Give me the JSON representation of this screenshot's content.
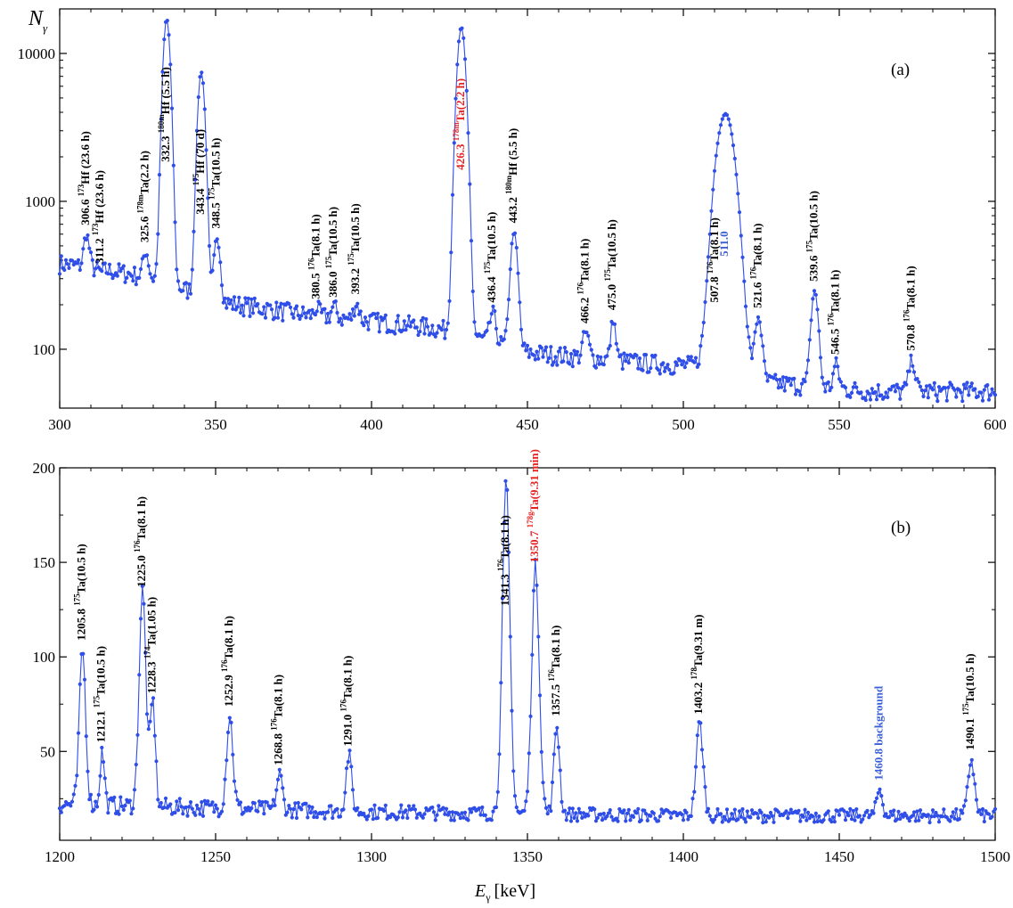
{
  "figure": {
    "ylabel_a": "N",
    "ylabel_a_sub": "γ",
    "xlabel": "E",
    "xlabel_sub": "γ",
    "xlabel_unit": "[keV]"
  },
  "colors": {
    "series": "#2f4ee8",
    "highlight": "#e52222",
    "background_line": "#3a5fd6",
    "axis": "#000000"
  },
  "chart_data": [
    {
      "panel_label": "(a)",
      "type": "line",
      "yscale": "log",
      "xlim": [
        300,
        600
      ],
      "ylim": [
        40,
        20000
      ],
      "xticks": [
        "300",
        "350",
        "400",
        "450",
        "500",
        "550",
        "600"
      ],
      "yticks": [
        "100",
        "1000",
        "10000"
      ],
      "baseline": [
        [
          300,
          380
        ],
        [
          320,
          330
        ],
        [
          330,
          300
        ],
        [
          350,
          210
        ],
        [
          380,
          170
        ],
        [
          420,
          140
        ],
        [
          430,
          125
        ],
        [
          450,
          95
        ],
        [
          490,
          80
        ],
        [
          520,
          75
        ],
        [
          525,
          60
        ],
        [
          560,
          52
        ],
        [
          600,
          52
        ]
      ],
      "peaks": [
        {
          "x": 306.6,
          "y": 600,
          "w": 0.8,
          "label": "306.6 ",
          "nuclide": "173",
          "rest": "Hf (23.6 h)",
          "color": "black"
        },
        {
          "x": 311.2,
          "y": 330,
          "w": 0.8,
          "label": "311.2 ",
          "nuclide": "173",
          "rest": "Hf (23.6 h)",
          "color": "black"
        },
        {
          "x": 325.6,
          "y": 460,
          "w": 0.8,
          "label": "325.6 ",
          "nuclide": "178m",
          "rest": "Ta(2.2 h)",
          "color": "black"
        },
        {
          "x": 332.3,
          "y": 17000,
          "w": 1.0,
          "label": "332.3 ",
          "nuclide": "180m",
          "rest": "Hf (5.5 h)",
          "color": "black"
        },
        {
          "x": 343.4,
          "y": 7500,
          "w": 1.0,
          "label": "343.4 ",
          "nuclide": "175",
          "rest": "Hf (70 d)",
          "color": "black"
        },
        {
          "x": 348.5,
          "y": 570,
          "w": 0.9,
          "label": "348.5 ",
          "nuclide": "175",
          "rest": "Ta(10.5 h)",
          "color": "black"
        },
        {
          "x": 380.5,
          "y": 190,
          "w": 0.8,
          "label": "380.5 ",
          "nuclide": "176",
          "rest": "Ta(8.1 h)",
          "color": "black"
        },
        {
          "x": 386.0,
          "y": 195,
          "w": 0.8,
          "label": "386.0 ",
          "nuclide": "175",
          "rest": "Ta(10.5 h)",
          "color": "black"
        },
        {
          "x": 393.2,
          "y": 205,
          "w": 0.8,
          "label": "393.2 ",
          "nuclide": "175",
          "rest": "Ta(10.5 h)",
          "color": "black"
        },
        {
          "x": 426.3,
          "y": 15000,
          "w": 1.2,
          "label": "426.3 ",
          "nuclide": "178m",
          "rest": "Ta(2.2 h)",
          "color": "red"
        },
        {
          "x": 436.4,
          "y": 180,
          "w": 0.9,
          "label": "436.4 ",
          "nuclide": "175",
          "rest": "Ta(10.5 h)",
          "color": "black"
        },
        {
          "x": 443.2,
          "y": 620,
          "w": 1.0,
          "label": "443.2 ",
          "nuclide": "180m",
          "rest": "Hf (5.5 h)",
          "color": "black"
        },
        {
          "x": 466.2,
          "y": 130,
          "w": 0.9,
          "label": "466.2 ",
          "nuclide": "176",
          "rest": "Ta(8.1 h)",
          "color": "black"
        },
        {
          "x": 475.0,
          "y": 160,
          "w": 0.7,
          "label": "475.0 ",
          "nuclide": "175",
          "rest": "Ta(10.5 h)",
          "color": "black"
        },
        {
          "x": 507.8,
          "y": 180,
          "w": 0.9,
          "label": "507.8 ",
          "nuclide": "176",
          "rest": "Ta(8.1 h)",
          "color": "black"
        },
        {
          "x": 511.0,
          "y": 3900,
          "w": 2.5,
          "label": "511.0",
          "nuclide": "",
          "rest": "",
          "color": "blue"
        },
        {
          "x": 521.6,
          "y": 165,
          "w": 1.0,
          "label": "521.6 ",
          "nuclide": "176",
          "rest": "Ta(8.1 h)",
          "color": "black"
        },
        {
          "x": 539.6,
          "y": 250,
          "w": 1.0,
          "label": "539.6 ",
          "nuclide": "175",
          "rest": "Ta(10.5 h)",
          "color": "black"
        },
        {
          "x": 546.5,
          "y": 80,
          "w": 0.8,
          "label": "546.5 ",
          "nuclide": "176",
          "rest": "Ta(8.1 h)",
          "color": "black"
        },
        {
          "x": 570.8,
          "y": 85,
          "w": 0.9,
          "label": "570.8 ",
          "nuclide": "176",
          "rest": "Ta(8.1 h)",
          "color": "black"
        }
      ]
    },
    {
      "panel_label": "(b)",
      "type": "line",
      "yscale": "linear",
      "xlim": [
        1200,
        1500
      ],
      "ylim": [
        3,
        200
      ],
      "xticks": [
        "1200",
        "1250",
        "1300",
        "1350",
        "1400",
        "1450",
        "1500"
      ],
      "yticks": [
        "50",
        "100",
        "150",
        "200"
      ],
      "baseline": [
        [
          1200,
          22
        ],
        [
          1300,
          18
        ],
        [
          1400,
          16
        ],
        [
          1500,
          16
        ]
      ],
      "peaks": [
        {
          "x": 1205.8,
          "y": 104,
          "w": 1.0,
          "label": "1205.8 ",
          "nuclide": "175",
          "rest": "Ta(10.5 h)",
          "color": "black"
        },
        {
          "x": 1212.1,
          "y": 50,
          "w": 0.7,
          "label": "1212.1 ",
          "nuclide": "175",
          "rest": "Ta(10.5 h)",
          "color": "black"
        },
        {
          "x": 1225.0,
          "y": 135,
          "w": 1.1,
          "label": "1225.0 ",
          "nuclide": "176",
          "rest": "Ta(8.1 h)",
          "color": "black"
        },
        {
          "x": 1228.3,
          "y": 76,
          "w": 0.8,
          "label": "1228.3 ",
          "nuclide": "174",
          "rest": "Ta(1.05 h)",
          "color": "black"
        },
        {
          "x": 1252.9,
          "y": 69,
          "w": 1.0,
          "label": "1252.9 ",
          "nuclide": "176",
          "rest": "Ta(8.1 h)",
          "color": "black"
        },
        {
          "x": 1268.8,
          "y": 38,
          "w": 0.9,
          "label": "1268.8 ",
          "nuclide": "176",
          "rest": "Ta(8.1 h)",
          "color": "black"
        },
        {
          "x": 1291.0,
          "y": 48,
          "w": 0.9,
          "label": "1291.0 ",
          "nuclide": "176",
          "rest": "Ta(8.1 h)",
          "color": "black"
        },
        {
          "x": 1341.3,
          "y": 192,
          "w": 1.2,
          "label": "1341.3 ",
          "nuclide": "176",
          "rest": "Ta(8.1 h)",
          "color": "black"
        },
        {
          "x": 1350.7,
          "y": 148,
          "w": 1.2,
          "label": "1350.7 ",
          "nuclide": "178g",
          "rest": "Ta(9.31 min)",
          "color": "red"
        },
        {
          "x": 1357.5,
          "y": 64,
          "w": 0.9,
          "label": "1357.5 ",
          "nuclide": "176",
          "rest": "Ta(8.1 h)",
          "color": "black"
        },
        {
          "x": 1403.2,
          "y": 65,
          "w": 1.1,
          "label": "1403.2 ",
          "nuclide": "178",
          "rest": "Ta(9.31 m)",
          "color": "black"
        },
        {
          "x": 1460.8,
          "y": 30,
          "w": 0.9,
          "label": "1460.8 background",
          "nuclide": "",
          "rest": "",
          "color": "blue"
        },
        {
          "x": 1490.1,
          "y": 46,
          "w": 1.0,
          "label": "1490.1 ",
          "nuclide": "175",
          "rest": "Ta(10.5 h)",
          "color": "black"
        }
      ]
    }
  ]
}
